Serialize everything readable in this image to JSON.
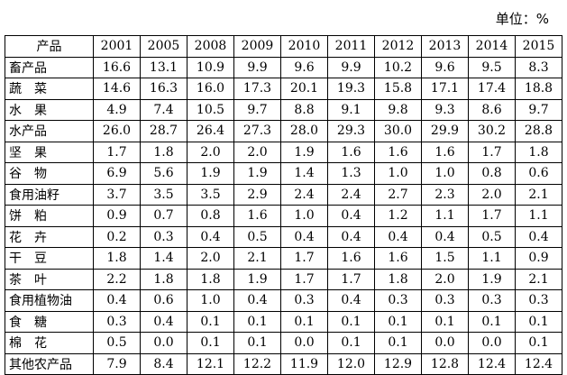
{
  "unit_label": "单位：%",
  "table": {
    "headers": [
      "产品",
      "2001",
      "2005",
      "2008",
      "2009",
      "2010",
      "2011",
      "2012",
      "2013",
      "2014",
      "2015"
    ],
    "rows": [
      [
        "畜产品",
        "16.6",
        "13.1",
        "10.9",
        "9.9",
        "9.6",
        "9.9",
        "10.2",
        "9.6",
        "9.5",
        "8.3"
      ],
      [
        "蔬　菜",
        "14.6",
        "16.3",
        "16.0",
        "17.3",
        "20.1",
        "19.3",
        "15.8",
        "17.1",
        "17.4",
        "18.8"
      ],
      [
        "水　果",
        "4.9",
        "7.4",
        "10.5",
        "9.7",
        "8.8",
        "9.1",
        "9.8",
        "9.3",
        "8.6",
        "9.7"
      ],
      [
        "水产品",
        "26.0",
        "28.7",
        "26.4",
        "27.3",
        "28.0",
        "29.3",
        "30.0",
        "29.9",
        "30.2",
        "28.8"
      ],
      [
        "坚　果",
        "1.7",
        "1.8",
        "2.0",
        "2.0",
        "1.9",
        "1.6",
        "1.6",
        "1.6",
        "1.7",
        "1.8"
      ],
      [
        "谷　物",
        "6.9",
        "5.6",
        "1.9",
        "1.9",
        "1.4",
        "1.3",
        "1.0",
        "1.0",
        "0.8",
        "0.6"
      ],
      [
        "食用油籽",
        "3.7",
        "3.5",
        "3.5",
        "2.9",
        "2.4",
        "2.4",
        "2.7",
        "2.3",
        "2.0",
        "2.1"
      ],
      [
        "饼　粕",
        "0.9",
        "0.7",
        "0.8",
        "1.6",
        "1.0",
        "0.4",
        "1.2",
        "1.1",
        "1.7",
        "1.1"
      ],
      [
        "花　卉",
        "0.2",
        "0.3",
        "0.4",
        "0.5",
        "0.4",
        "0.4",
        "0.4",
        "0.4",
        "0.5",
        "0.4"
      ],
      [
        "干　豆",
        "1.8",
        "1.4",
        "2.0",
        "2.1",
        "1.7",
        "1.6",
        "1.6",
        "1.5",
        "1.1",
        "0.9"
      ],
      [
        "茶　叶",
        "2.2",
        "1.8",
        "1.8",
        "1.9",
        "1.7",
        "1.7",
        "1.8",
        "2.0",
        "1.9",
        "2.1"
      ],
      [
        "食用植物油",
        "0.4",
        "0.6",
        "1.0",
        "0.4",
        "0.3",
        "0.4",
        "0.3",
        "0.3",
        "0.3",
        "0.3"
      ],
      [
        "食　糖",
        "0.3",
        "0.4",
        "0.1",
        "0.1",
        "0.1",
        "0.1",
        "0.1",
        "0.1",
        "0.1",
        "0.1"
      ],
      [
        "棉　花",
        "0.5",
        "0.0",
        "0.1",
        "0.1",
        "0.0",
        "0.1",
        "0.1",
        "0.0",
        "0.0",
        "0.1"
      ],
      [
        "其他农产品",
        "7.9",
        "8.4",
        "12.1",
        "12.2",
        "11.9",
        "12.0",
        "12.9",
        "12.8",
        "12.4",
        "12.4"
      ]
    ]
  }
}
